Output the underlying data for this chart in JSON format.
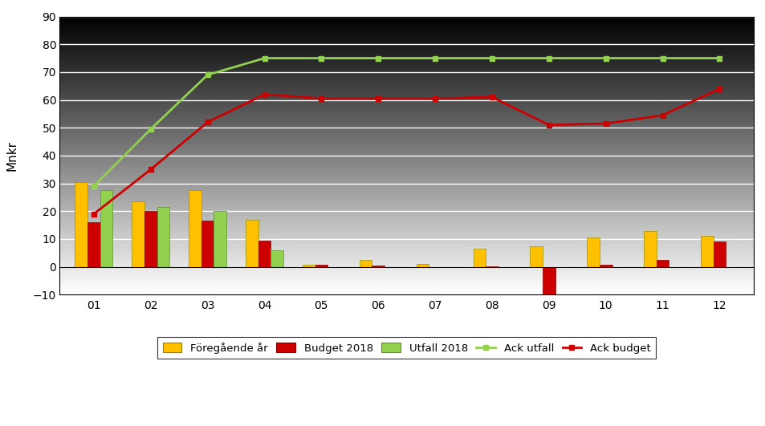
{
  "months": [
    "01",
    "02",
    "03",
    "04",
    "05",
    "06",
    "07",
    "08",
    "09",
    "10",
    "11",
    "12"
  ],
  "foregaende_ar": [
    30.5,
    23.5,
    27.5,
    17.0,
    0.7,
    2.5,
    1.0,
    6.5,
    7.5,
    10.5,
    13.0,
    11.0
  ],
  "budget_2018": [
    16.0,
    20.0,
    16.5,
    9.5,
    0.8,
    0.5,
    -0.2,
    0.1,
    -10.0,
    0.8,
    2.5,
    9.0
  ],
  "utfall_2018": [
    27.5,
    21.5,
    20.0,
    6.0,
    null,
    null,
    null,
    null,
    null,
    null,
    null,
    null
  ],
  "ack_utfall": [
    29.0,
    49.5,
    69.0,
    75.0,
    75.0,
    75.0,
    75.0,
    75.0,
    75.0,
    75.0,
    75.0,
    75.0
  ],
  "ack_budget": [
    19.0,
    35.0,
    52.0,
    62.0,
    60.5,
    60.5,
    60.5,
    61.0,
    51.0,
    51.5,
    54.5,
    64.0
  ],
  "bar_width": 0.22,
  "ylim": [
    -10,
    90
  ],
  "yticks": [
    -10,
    0,
    10,
    20,
    30,
    40,
    50,
    60,
    70,
    80,
    90
  ],
  "ylabel": "Mnkr",
  "color_foregaende": "#FFC000",
  "color_budget": "#CC0000",
  "color_utfall": "#92D050",
  "color_ack_utfall": "#92D050",
  "color_ack_budget": "#CC0000",
  "bg_color_top": "#D8D8D8",
  "bg_color_bottom": "#E8E8E8",
  "legend_labels": [
    "Föregående år",
    "Budget 2018",
    "Utfall 2018",
    "Ack utfall",
    "Ack budget"
  ]
}
